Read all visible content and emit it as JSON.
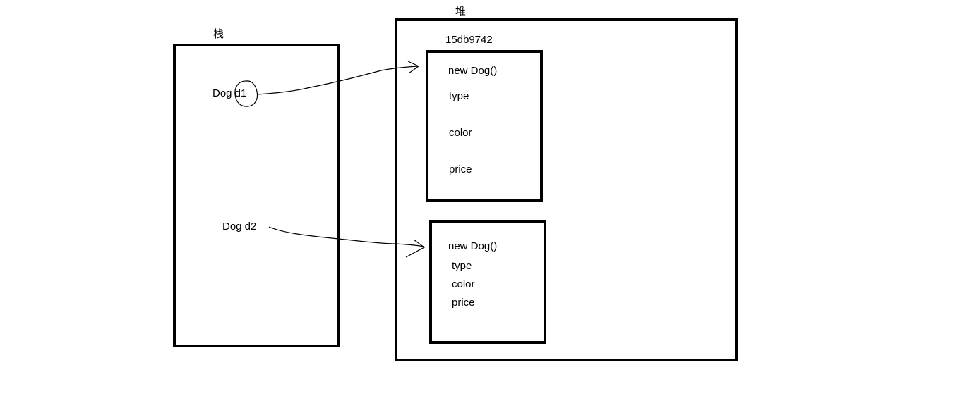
{
  "stack": {
    "title": "栈",
    "vars": [
      {
        "label": "Dog d1"
      },
      {
        "label": "Dog d2"
      }
    ]
  },
  "heap": {
    "title": "堆",
    "objects": [
      {
        "address": "15db9742",
        "constructor": "new Dog()",
        "fields": [
          "type",
          "color",
          "price"
        ]
      },
      {
        "constructor": "new Dog()",
        "fields": [
          "type",
          "color",
          "price"
        ]
      }
    ]
  }
}
